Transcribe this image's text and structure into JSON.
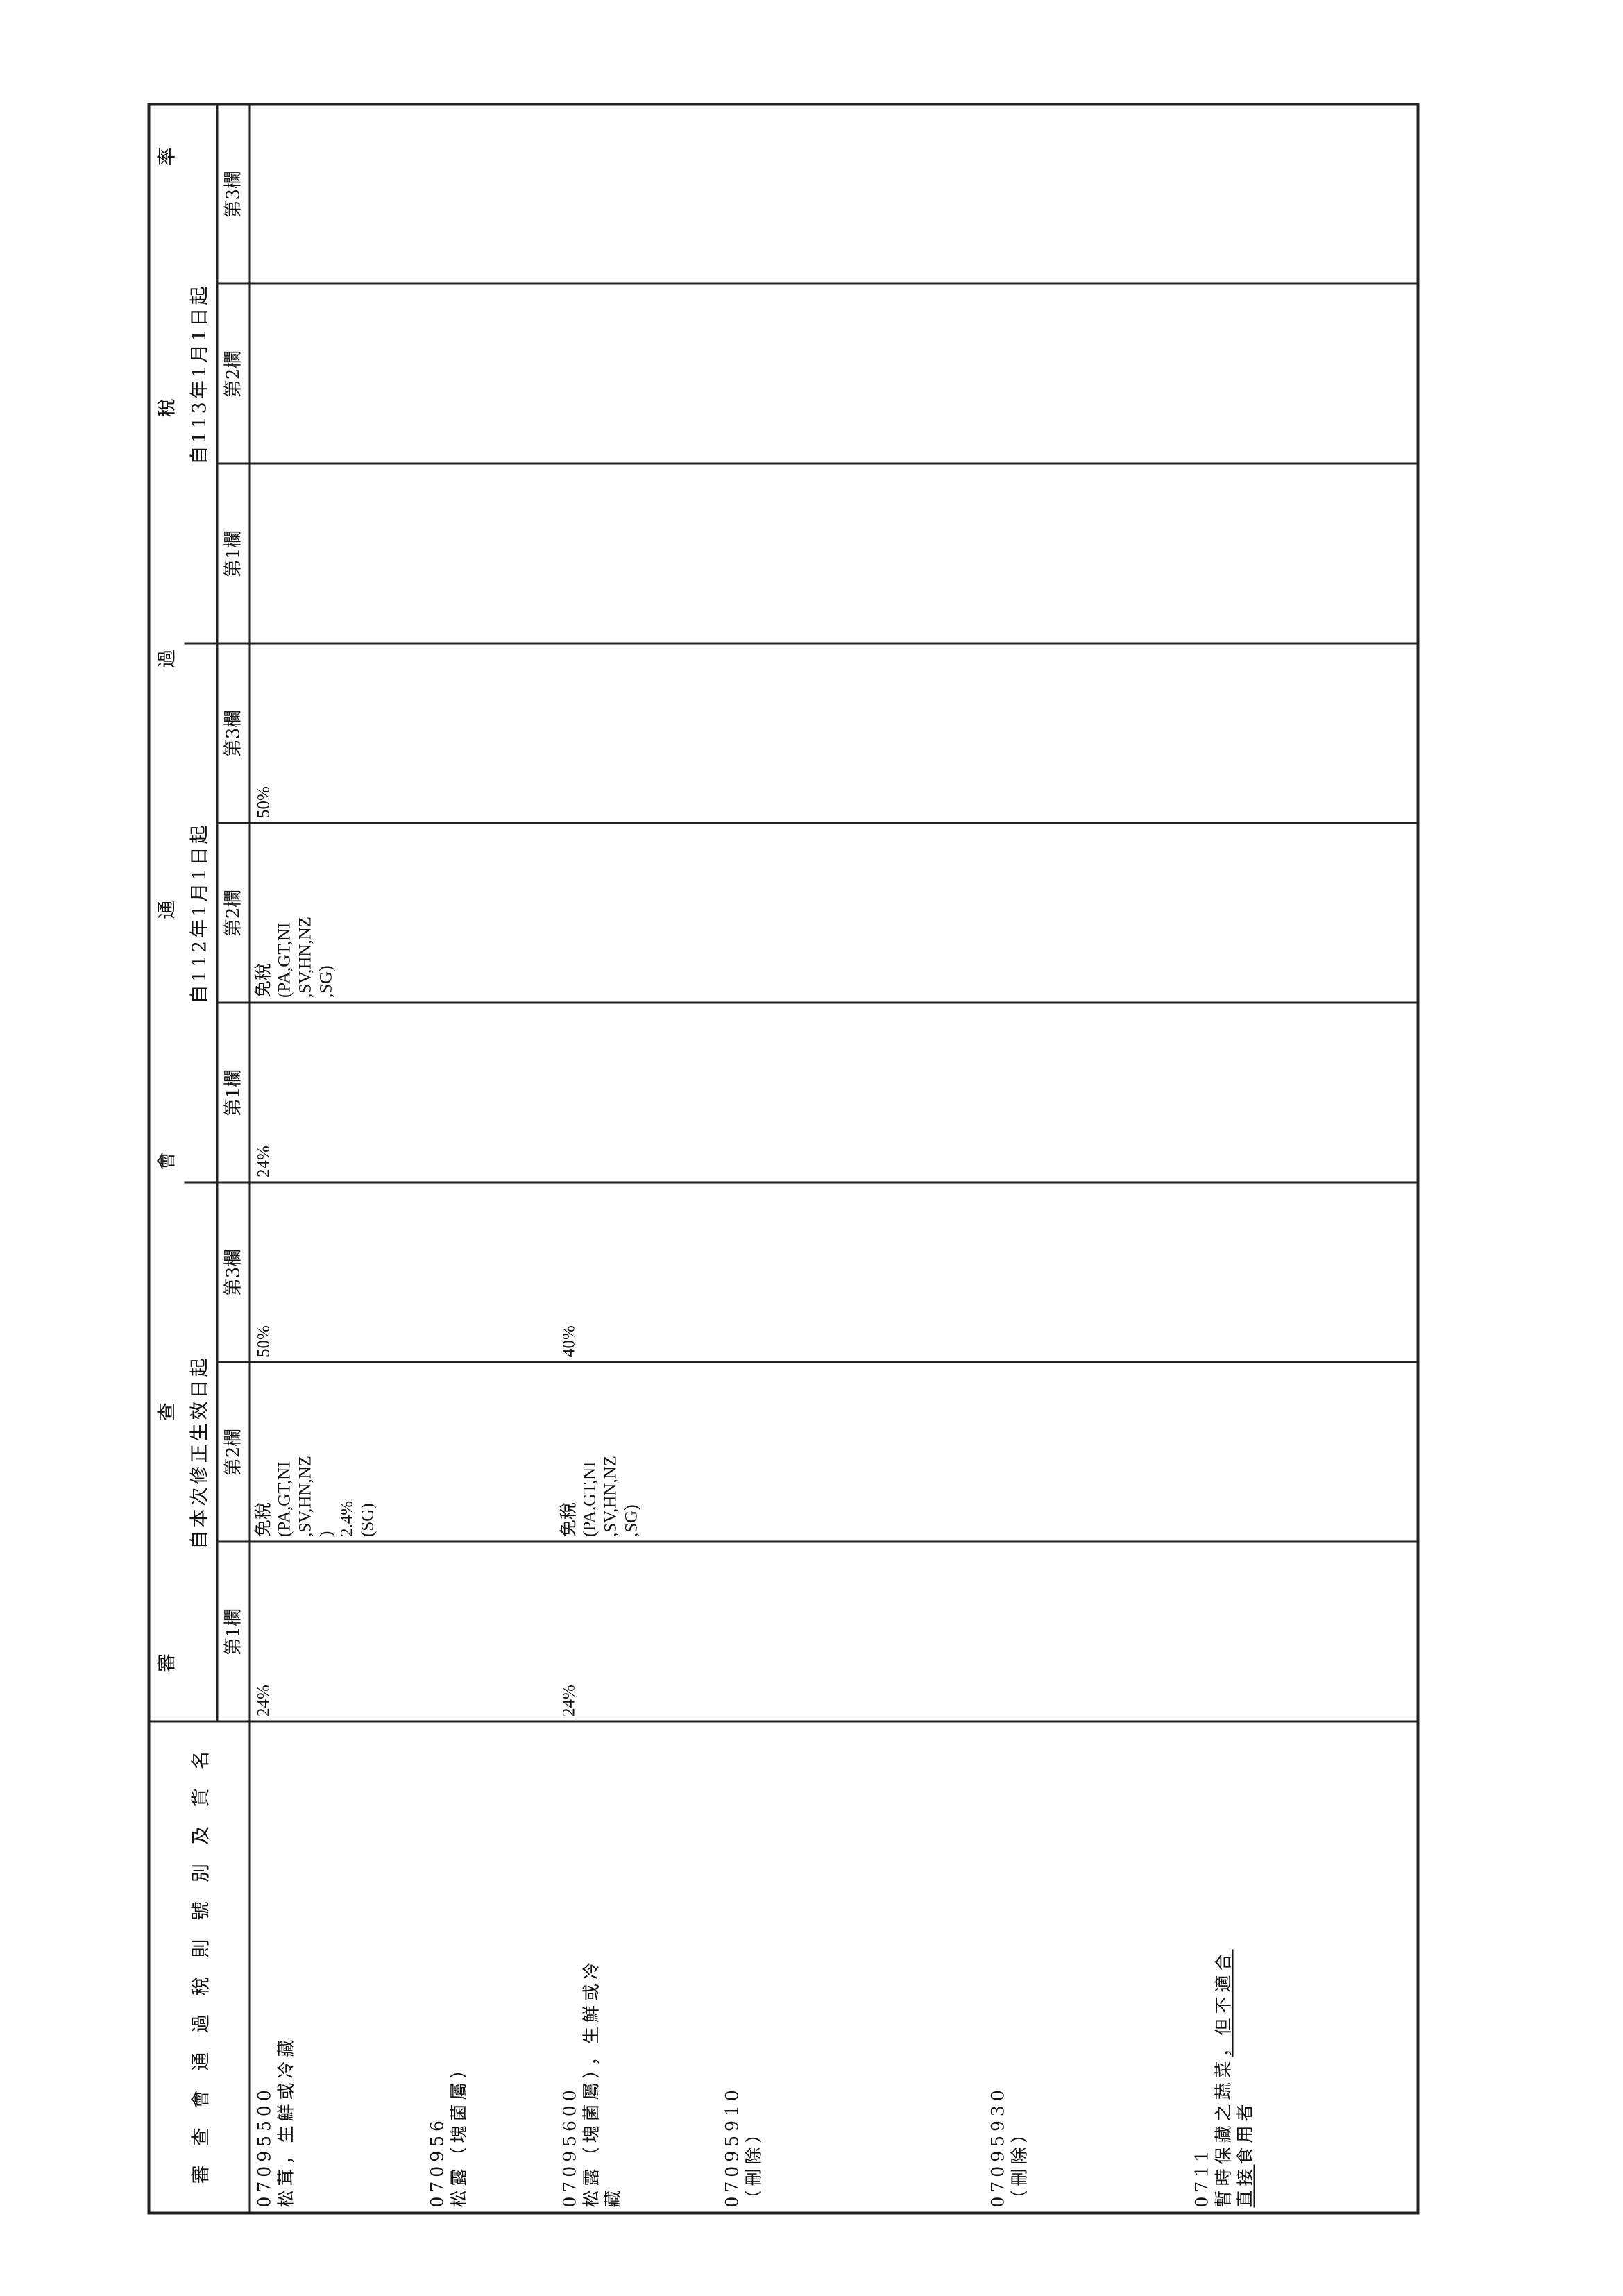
{
  "header": {
    "goods_title": [
      "審",
      "查",
      "會",
      "通",
      "過",
      "稅",
      "則",
      "號",
      "別",
      "及",
      "貨",
      "名"
    ],
    "rate_title": [
      "審",
      "查",
      "會",
      "通",
      "過",
      "稅",
      "率"
    ],
    "groups": [
      "自本次修正生效日起",
      "自112年1月1日起",
      "自113年1月1日起"
    ],
    "columns": [
      "第1欄",
      "第2欄",
      "第3欄",
      "第1欄",
      "第2欄",
      "第3欄",
      "第1欄",
      "第2欄",
      "第3欄"
    ]
  },
  "rows": [
    {
      "code": "07095500",
      "name": "松茸，生鮮或冷藏",
      "rates": [
        "24%",
        "免稅\n(PA,GT,NI\n,SV,HN,NZ\n)\n2.4%\n(SG)",
        "50%",
        "24%",
        "免稅\n(PA,GT,NI\n,SV,HN,NZ\n,SG)",
        "50%",
        "",
        "",
        ""
      ]
    },
    {
      "code": "070956",
      "name": "松露（塊菌屬）",
      "rates": [
        "",
        "",
        "",
        "",
        "",
        "",
        "",
        "",
        ""
      ]
    },
    {
      "code": "07095600",
      "name": "松露（塊菌屬），生鮮或冷\n藏",
      "rates": [
        "24%",
        "免稅\n(PA,GT,NI\n,SV,HN,NZ\n,SG)",
        "40%",
        "",
        "",
        "",
        "",
        "",
        ""
      ]
    },
    {
      "code": "07095910",
      "name": "（刪除）",
      "rates": [
        "",
        "",
        "",
        "",
        "",
        "",
        "",
        "",
        ""
      ]
    },
    {
      "code": "07095930",
      "name": "（刪除）",
      "rates": [
        "",
        "",
        "",
        "",
        "",
        "",
        "",
        "",
        ""
      ]
    },
    {
      "code": "0711",
      "name_parts": [
        "暫時保藏之蔬菜",
        "，但不適合",
        "直接",
        "食用者"
      ],
      "rates": [
        "",
        "",
        "",
        "",
        "",
        "",
        "",
        "",
        ""
      ]
    }
  ]
}
